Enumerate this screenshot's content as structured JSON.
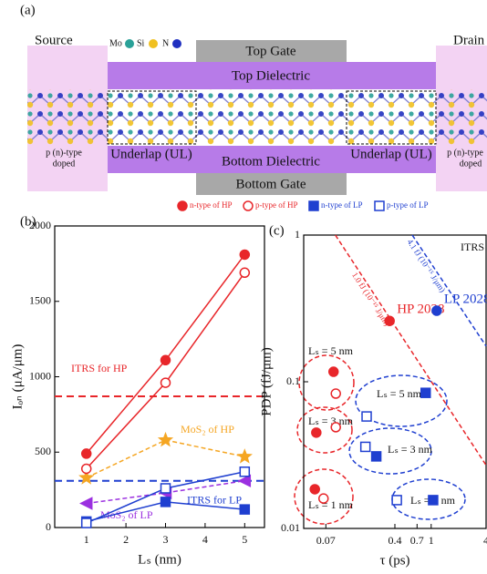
{
  "panel_a": {
    "label": "(a)",
    "source": "Source",
    "drain": "Drain",
    "top_gate": "Top Gate",
    "top_dielectric": "Top Dielectric",
    "bottom_dielectric": "Bottom  Dielectric",
    "bottom_gate": "Bottom Gate",
    "underlap_left": "Underlap (UL)",
    "underlap_right": "Underlap (UL)",
    "doped_left": [
      "p (n)-type",
      "doped"
    ],
    "doped_right": [
      "p (n)-type",
      "doped"
    ],
    "atoms": [
      "Mo",
      "Si",
      "N"
    ]
  },
  "chart_data": [
    {
      "type": "line",
      "panel": "(b)",
      "x_label": "Lₛ (nm)",
      "y_label": "Iₒₙ (μA/μm)",
      "x": [
        1,
        3,
        5
      ],
      "xlim": [
        0.2,
        5.5
      ],
      "xticks": [
        1,
        2,
        3,
        4,
        5
      ],
      "ylim": [
        0,
        2000
      ],
      "yticks": [
        0,
        500,
        1000,
        1500,
        2000
      ],
      "series": [
        {
          "name": "n-type of HP",
          "color": "#e8262a",
          "marker": "circle",
          "filled": true,
          "values": [
            490,
            1110,
            1810
          ]
        },
        {
          "name": "p-type of HP",
          "color": "#e8262a",
          "marker": "circle",
          "filled": false,
          "values": [
            390,
            960,
            1690
          ]
        },
        {
          "name": "n-type of LP",
          "color": "#1f3fd0",
          "marker": "square",
          "filled": true,
          "values": [
            40,
            170,
            120
          ]
        },
        {
          "name": "p-type of LP",
          "color": "#1f3fd0",
          "marker": "square",
          "filled": false,
          "values": [
            30,
            260,
            370
          ]
        }
      ],
      "curves": [
        {
          "name": "MoS₂ of HP",
          "color": "#f5a623",
          "marker": "star",
          "values": [
            330,
            580,
            470
          ]
        },
        {
          "name": "MoS₂ of LP",
          "color": "#9b30e0",
          "marker": "triangle",
          "values": [
            160,
            230,
            310
          ]
        }
      ],
      "hlines": [
        {
          "label": "ITRS for HP",
          "value": 870,
          "color": "#e8262a"
        },
        {
          "label": "ITRS for LP",
          "value": 310,
          "color": "#1f3fd0"
        }
      ]
    },
    {
      "type": "scatter",
      "panel": "(c)",
      "x_label": "τ (ps)",
      "y_label": "PDP (fJ/μm)",
      "log_x": true,
      "log_y": true,
      "xlim": [
        0.04,
        4
      ],
      "xticks": [
        0.07,
        0.4,
        0.7,
        1,
        4
      ],
      "ylim": [
        0.01,
        1
      ],
      "yticks": [
        0.01,
        0.1,
        1
      ],
      "series": [
        {
          "color": "#e8262a",
          "marker": "circle",
          "filled": true,
          "x": [
            0.085,
            0.055,
            0.053
          ],
          "values": [
            0.117,
            0.045,
            0.0185
          ]
        },
        {
          "color": "#e8262a",
          "marker": "circle",
          "filled": false,
          "x": [
            0.09,
            0.09,
            0.066
          ],
          "values": [
            0.083,
            0.049,
            0.016
          ]
        },
        {
          "color": "#1f3fd0",
          "marker": "square",
          "filled": true,
          "x": [
            0.87,
            0.25,
            1.05
          ],
          "values": [
            0.084,
            0.031,
            0.0156
          ]
        },
        {
          "color": "#1f3fd0",
          "marker": "square",
          "filled": false,
          "x": [
            0.196,
            0.19,
            0.42
          ],
          "values": [
            0.058,
            0.036,
            0.0156
          ]
        }
      ],
      "targets": [
        {
          "label": "HP 2028",
          "x": 0.35,
          "value": 0.26,
          "color": "#e8262a"
        },
        {
          "label": "LP 2028",
          "x": 1.15,
          "value": 0.305,
          "color": "#1f3fd0"
        }
      ],
      "ref_lines": [
        {
          "label": "1.0 fJ (10⁻¹⁵ J/μm)",
          "x": [
            0.089,
            4
          ],
          "values": [
            1,
            0.027
          ],
          "color": "#e8262a"
        },
        {
          "label": "4.1 fJ (10⁻¹⁵ J/μm)",
          "x": [
            0.62,
            4
          ],
          "values": [
            1,
            0.175
          ],
          "color": "#1f3fd0"
        }
      ],
      "annotations": [
        "ITRS",
        "Lₛ = 5 nm",
        "Lₛ = 3 nm",
        "Lₛ = 1 nm",
        "Lₛ = 5 nm",
        "Lₛ = 3 nm",
        "Lₛ = 1 nm"
      ]
    }
  ]
}
